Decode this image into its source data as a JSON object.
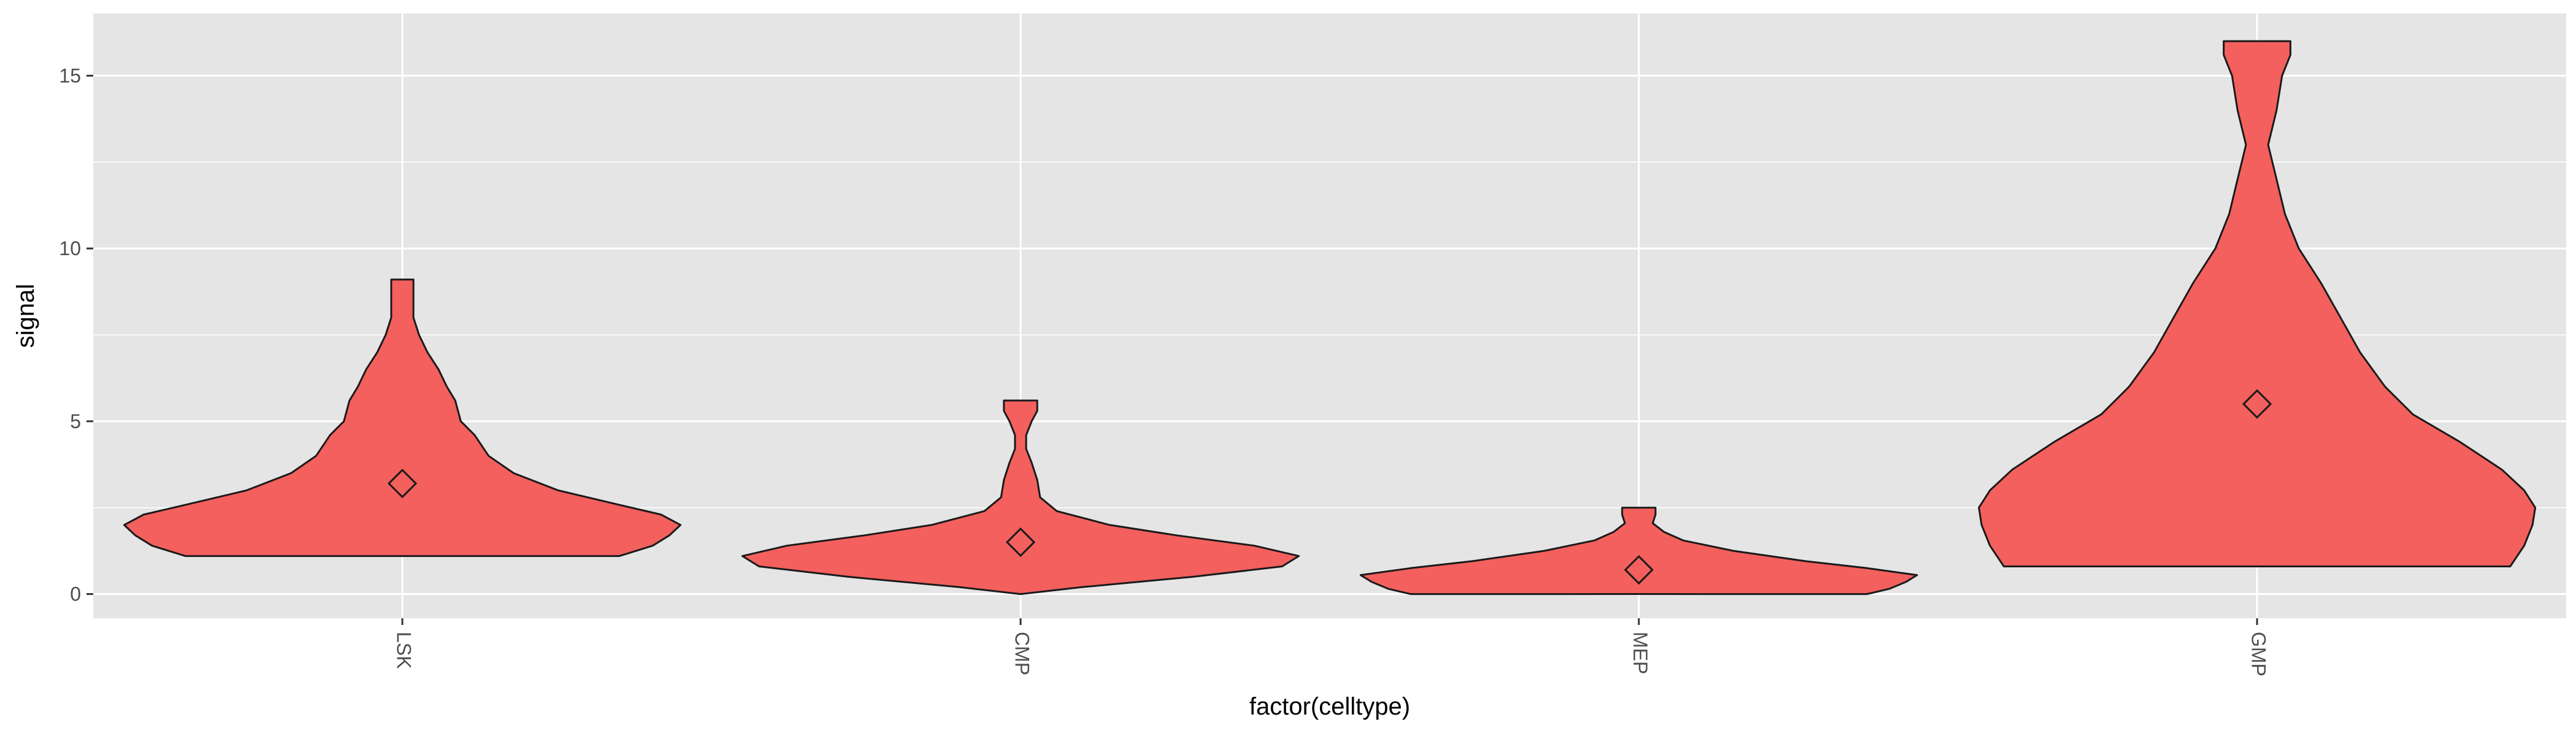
{
  "chart_data": {
    "type": "violin",
    "xlabel": "factor(celltype)",
    "ylabel": "signal",
    "ylim": [
      -0.7,
      16.8
    ],
    "y_ticks": [
      0,
      5,
      10,
      15
    ],
    "x_tick_rotation": 90,
    "grid": true,
    "legend": "none",
    "colors": {
      "panel": "#e5e5e5",
      "grid": "#ffffff",
      "fill": "#f3605d",
      "outline": "#1a1a1a",
      "tick_text": "#4d4d4d"
    },
    "categories": [
      "LSK",
      "CMP",
      "MEP",
      "GMP"
    ],
    "mean_marker": "diamond",
    "violins": [
      {
        "category": "LSK",
        "ymin": 1.1,
        "ymax": 9.1,
        "mean": 3.2,
        "profile": [
          [
            1.1,
            0.78
          ],
          [
            1.4,
            0.9
          ],
          [
            1.7,
            0.96
          ],
          [
            2.0,
            1.0
          ],
          [
            2.3,
            0.93
          ],
          [
            2.6,
            0.77
          ],
          [
            3.0,
            0.56
          ],
          [
            3.5,
            0.4
          ],
          [
            4.0,
            0.31
          ],
          [
            4.6,
            0.26
          ],
          [
            5.0,
            0.21
          ],
          [
            5.6,
            0.19
          ],
          [
            6.0,
            0.16
          ],
          [
            6.5,
            0.13
          ],
          [
            7.0,
            0.09
          ],
          [
            7.5,
            0.06
          ],
          [
            8.0,
            0.04
          ],
          [
            8.5,
            0.04
          ],
          [
            9.1,
            0.04
          ]
        ]
      },
      {
        "category": "CMP",
        "ymin": 0.0,
        "ymax": 5.6,
        "mean": 1.5,
        "profile": [
          [
            0.0,
            0.0
          ],
          [
            0.2,
            0.22
          ],
          [
            0.5,
            0.62
          ],
          [
            0.8,
            0.94
          ],
          [
            1.1,
            1.0
          ],
          [
            1.4,
            0.84
          ],
          [
            1.7,
            0.56
          ],
          [
            2.0,
            0.32
          ],
          [
            2.4,
            0.13
          ],
          [
            2.8,
            0.07
          ],
          [
            3.3,
            0.06
          ],
          [
            3.8,
            0.04
          ],
          [
            4.2,
            0.02
          ],
          [
            4.6,
            0.02
          ],
          [
            5.0,
            0.04
          ],
          [
            5.3,
            0.06
          ],
          [
            5.6,
            0.06
          ]
        ]
      },
      {
        "category": "MEP",
        "ymin": 0.0,
        "ymax": 2.5,
        "mean": 0.7,
        "profile": [
          [
            0.0,
            0.82
          ],
          [
            0.15,
            0.9
          ],
          [
            0.35,
            0.96
          ],
          [
            0.55,
            1.0
          ],
          [
            0.75,
            0.82
          ],
          [
            0.95,
            0.6
          ],
          [
            1.25,
            0.34
          ],
          [
            1.55,
            0.16
          ],
          [
            1.8,
            0.09
          ],
          [
            2.05,
            0.05
          ],
          [
            2.3,
            0.06
          ],
          [
            2.5,
            0.06
          ]
        ]
      },
      {
        "category": "GMP",
        "ymin": 0.8,
        "ymax": 16.0,
        "mean": 5.5,
        "profile": [
          [
            0.8,
            0.91
          ],
          [
            1.4,
            0.96
          ],
          [
            2.0,
            0.99
          ],
          [
            2.5,
            1.0
          ],
          [
            3.0,
            0.96
          ],
          [
            3.6,
            0.88
          ],
          [
            4.4,
            0.73
          ],
          [
            5.2,
            0.56
          ],
          [
            6.0,
            0.46
          ],
          [
            7.0,
            0.37
          ],
          [
            8.0,
            0.3
          ],
          [
            9.0,
            0.23
          ],
          [
            10.0,
            0.15
          ],
          [
            11.0,
            0.1
          ],
          [
            12.0,
            0.07
          ],
          [
            13.0,
            0.04
          ],
          [
            14.0,
            0.07
          ],
          [
            15.0,
            0.09
          ],
          [
            15.6,
            0.12
          ],
          [
            16.0,
            0.12
          ]
        ]
      }
    ]
  }
}
